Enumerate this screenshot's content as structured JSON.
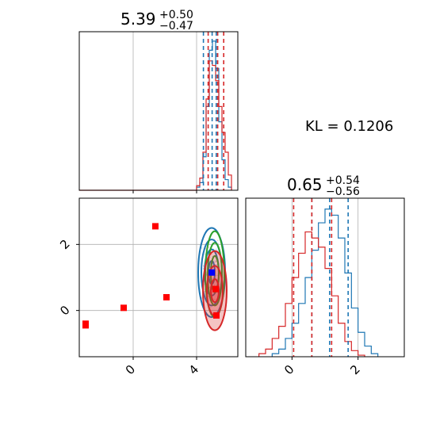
{
  "colors": {
    "posterior_a": "#1f77b4",
    "posterior_b": "#d62728",
    "contour_green": "#2ca02c",
    "marker_red": "#ff0000",
    "marker_blue": "#0000ff",
    "grid": "#b0b0b0"
  },
  "annotation": {
    "kl_text": "KL = 0.1206"
  },
  "panel_top_left": {
    "title_value": "5.39",
    "title_plus": "+0.50",
    "title_minus": "−0.47"
  },
  "panel_bottom_right": {
    "title_value": "0.65",
    "title_plus": "+0.54",
    "title_minus": "−0.56"
  },
  "chart_data": [
    {
      "type": "histogram",
      "panel": "top-left marginal (x parameter)",
      "xlim": [
        -3.4,
        6.6
      ],
      "x_ticks": [
        0,
        4
      ],
      "x_ticklabels_shown": false,
      "grid": true,
      "series": [
        {
          "color": "#1f77b4",
          "bins": [
            4.0,
            4.2,
            4.4,
            4.6,
            4.8,
            5.0,
            5.2,
            5.4,
            5.6,
            5.8,
            6.0,
            6.2
          ],
          "counts": [
            0.02,
            0.05,
            0.22,
            0.55,
            0.92,
            0.98,
            0.8,
            0.45,
            0.2,
            0.07,
            0.02
          ]
        },
        {
          "color": "#d62728",
          "bins": [
            -3.4,
            4.0,
            4.2,
            4.4,
            4.6,
            4.8,
            5.0,
            5.2,
            5.4,
            5.6,
            5.8,
            6.0,
            6.2
          ],
          "counts": [
            0.0,
            0.03,
            0.08,
            0.25,
            0.6,
            0.85,
            0.82,
            0.72,
            0.55,
            0.38,
            0.25,
            0.1
          ]
        }
      ],
      "quantile_lines": [
        {
          "color": "#1f77b4",
          "x": [
            4.43,
            4.98,
            5.24
          ]
        },
        {
          "color": "#d62728",
          "x": [
            4.73,
            5.33,
            5.71
          ]
        }
      ]
    },
    {
      "type": "histogram",
      "panel": "bottom-right marginal (y parameter)",
      "xlim": [
        -1.4,
        3.4
      ],
      "x_ticks": [
        0,
        2
      ],
      "x_ticklabels": [
        "0",
        "2"
      ],
      "grid": true,
      "series": [
        {
          "color": "#1f77b4",
          "bins": [
            -0.6,
            -0.4,
            -0.2,
            0.0,
            0.2,
            0.4,
            0.6,
            0.8,
            1.0,
            1.2,
            1.4,
            1.6,
            1.8,
            2.0,
            2.2,
            2.4,
            2.6
          ],
          "counts": [
            0.02,
            0.05,
            0.12,
            0.22,
            0.35,
            0.52,
            0.7,
            0.88,
            0.97,
            0.93,
            0.78,
            0.55,
            0.32,
            0.16,
            0.07,
            0.02
          ]
        },
        {
          "color": "#d62728",
          "bins": [
            -1.0,
            -0.8,
            -0.6,
            -0.4,
            -0.2,
            0.0,
            0.2,
            0.4,
            0.6,
            0.8,
            1.0,
            1.2,
            1.4,
            1.6,
            1.8,
            2.0,
            2.2
          ],
          "counts": [
            0.02,
            0.05,
            0.12,
            0.2,
            0.35,
            0.52,
            0.68,
            0.82,
            0.78,
            0.72,
            0.58,
            0.4,
            0.22,
            0.1,
            0.04,
            0.01
          ]
        }
      ],
      "quantile_lines": [
        {
          "color": "#1f77b4",
          "x": [
            0.6,
            1.14,
            1.7
          ]
        },
        {
          "color": "#d62728",
          "x": [
            0.05,
            0.6,
            1.2
          ]
        }
      ]
    },
    {
      "type": "scatter",
      "panel": "bottom-left 2D posterior",
      "xlim": [
        -3.4,
        6.6
      ],
      "ylim": [
        -1.4,
        3.4
      ],
      "x_ticks": [
        0,
        4
      ],
      "x_ticklabels": [
        "0",
        "4"
      ],
      "y_ticks": [
        0,
        2
      ],
      "y_ticklabels": [
        "0",
        "2"
      ],
      "grid": true,
      "contours": [
        {
          "color": "#1f77b4",
          "center": [
            4.95,
            1.15
          ],
          "radii_x": [
            0.2,
            0.45,
            0.65,
            0.85
          ],
          "radii_y": [
            0.35,
            0.7,
            1.0,
            1.35
          ]
        },
        {
          "color": "#2ca02c",
          "center": [
            5.15,
            1.1
          ],
          "radii_x": [
            0.25,
            0.45,
            0.6
          ],
          "radii_y": [
            0.55,
            0.95,
            1.3
          ]
        },
        {
          "color": "#d62728",
          "center": [
            5.15,
            0.6
          ],
          "radii_x": [
            0.25,
            0.5,
            0.75
          ],
          "radii_y": [
            0.35,
            0.75,
            1.2
          ],
          "filled": true
        }
      ],
      "markers": [
        {
          "color": "#ff0000",
          "points": [
            [
              -3.0,
              -0.4
            ],
            [
              -3.0,
              -0.45
            ],
            [
              -0.6,
              0.08
            ],
            [
              1.4,
              2.55
            ],
            [
              2.1,
              0.4
            ],
            [
              5.2,
              0.65
            ],
            [
              5.25,
              -0.15
            ]
          ]
        },
        {
          "color": "#0000ff",
          "points": [
            [
              4.95,
              1.15
            ]
          ]
        }
      ]
    }
  ]
}
